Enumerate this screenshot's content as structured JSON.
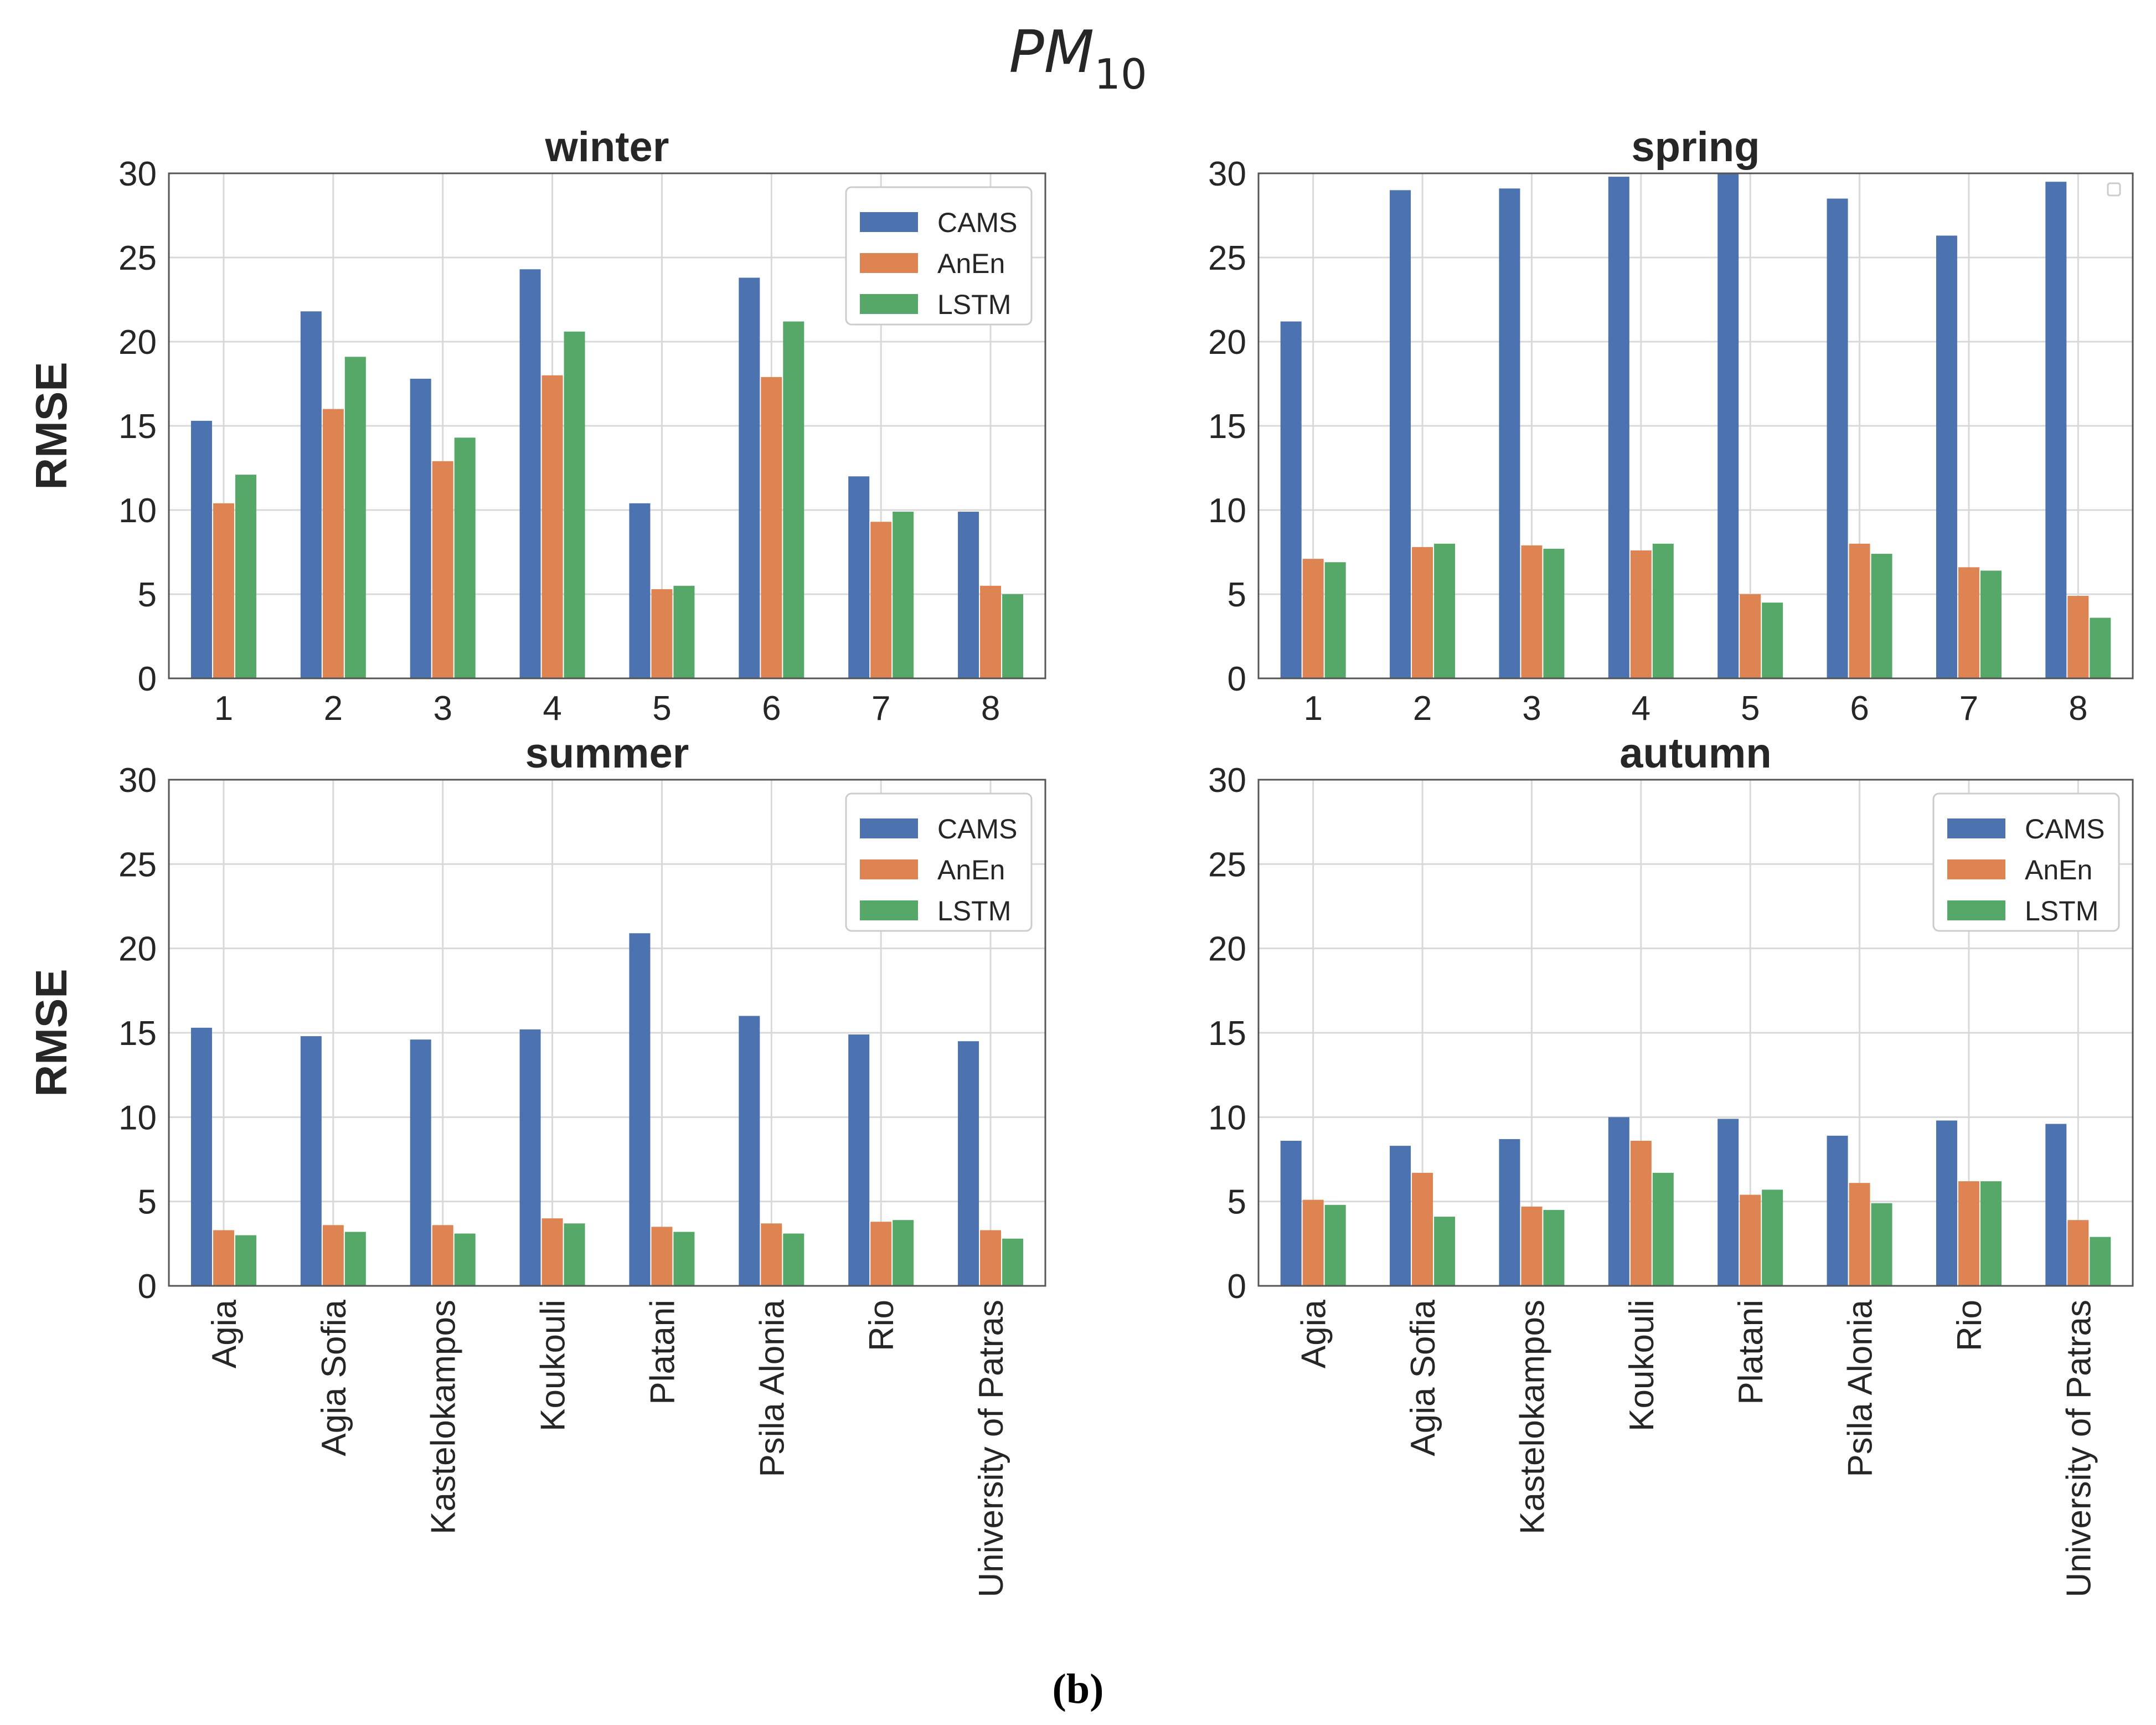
{
  "figure": {
    "title_main": "PM",
    "title_sub": "10",
    "caption": "(b)"
  },
  "colors": {
    "CAMS": "#4c72b0",
    "AnEn": "#dd8452",
    "LSTM": "#55a868",
    "grid": "#d9d9d9",
    "axis": "#555555",
    "text": "#262626"
  },
  "chart_data": [
    {
      "type": "bar",
      "title": "winter",
      "xlabel": "",
      "ylabel": "RMSE",
      "ylim": [
        0,
        30
      ],
      "yticks": [
        0,
        5,
        10,
        15,
        20,
        25,
        30
      ],
      "categories": [
        "1",
        "2",
        "3",
        "4",
        "5",
        "6",
        "7",
        "8"
      ],
      "legend": "top-right",
      "series": [
        {
          "name": "CAMS",
          "values": [
            15.3,
            21.8,
            17.8,
            24.3,
            10.4,
            23.8,
            12.0,
            9.9
          ]
        },
        {
          "name": "AnEn",
          "values": [
            10.4,
            16.0,
            12.9,
            18.0,
            5.3,
            17.9,
            9.3,
            5.5
          ]
        },
        {
          "name": "LSTM",
          "values": [
            12.1,
            19.1,
            14.3,
            20.6,
            5.5,
            21.2,
            9.9,
            5.0
          ]
        }
      ]
    },
    {
      "type": "bar",
      "title": "spring",
      "xlabel": "",
      "ylabel": "",
      "ylim": [
        0,
        30
      ],
      "yticks": [
        0,
        5,
        10,
        15,
        20,
        25,
        30
      ],
      "categories": [
        "1",
        "2",
        "3",
        "4",
        "5",
        "6",
        "7",
        "8"
      ],
      "legend": "none",
      "series": [
        {
          "name": "CAMS",
          "values": [
            21.2,
            29.0,
            29.1,
            29.8,
            30.0,
            28.5,
            26.3,
            29.5
          ]
        },
        {
          "name": "AnEn",
          "values": [
            7.1,
            7.8,
            7.9,
            7.6,
            5.0,
            8.0,
            6.6,
            4.9
          ]
        },
        {
          "name": "LSTM",
          "values": [
            6.9,
            8.0,
            7.7,
            8.0,
            4.5,
            7.4,
            6.4,
            3.6
          ]
        }
      ]
    },
    {
      "type": "bar",
      "title": "summer",
      "xlabel": "",
      "ylabel": "RMSE",
      "ylim": [
        0,
        30
      ],
      "yticks": [
        0,
        5,
        10,
        15,
        20,
        25,
        30
      ],
      "categories": [
        "Agia",
        "Agia Sofia",
        "Kastelokampos",
        "Koukouli",
        "Platani",
        "Psila Alonia",
        "Rio",
        "University of Patras"
      ],
      "legend": "top-right",
      "series": [
        {
          "name": "CAMS",
          "values": [
            15.3,
            14.8,
            14.6,
            15.2,
            20.9,
            16.0,
            14.9,
            14.5
          ]
        },
        {
          "name": "AnEn",
          "values": [
            3.3,
            3.6,
            3.6,
            4.0,
            3.5,
            3.7,
            3.8,
            3.3
          ]
        },
        {
          "name": "LSTM",
          "values": [
            3.0,
            3.2,
            3.1,
            3.7,
            3.2,
            3.1,
            3.9,
            2.8
          ]
        }
      ]
    },
    {
      "type": "bar",
      "title": "autumn",
      "xlabel": "",
      "ylabel": "",
      "ylim": [
        0,
        30
      ],
      "yticks": [
        0,
        5,
        10,
        15,
        20,
        25,
        30
      ],
      "categories": [
        "Agia",
        "Agia Sofia",
        "Kastelokampos",
        "Koukouli",
        "Platani",
        "Psila Alonia",
        "Rio",
        "University of Patras"
      ],
      "legend": "top-right",
      "series": [
        {
          "name": "CAMS",
          "values": [
            8.6,
            8.3,
            8.7,
            10.0,
            9.9,
            8.9,
            9.8,
            9.6
          ]
        },
        {
          "name": "AnEn",
          "values": [
            5.1,
            6.7,
            4.7,
            8.6,
            5.4,
            6.1,
            6.2,
            3.9
          ]
        },
        {
          "name": "LSTM",
          "values": [
            4.8,
            4.1,
            4.5,
            6.7,
            5.7,
            4.9,
            6.2,
            2.9
          ]
        }
      ]
    }
  ]
}
